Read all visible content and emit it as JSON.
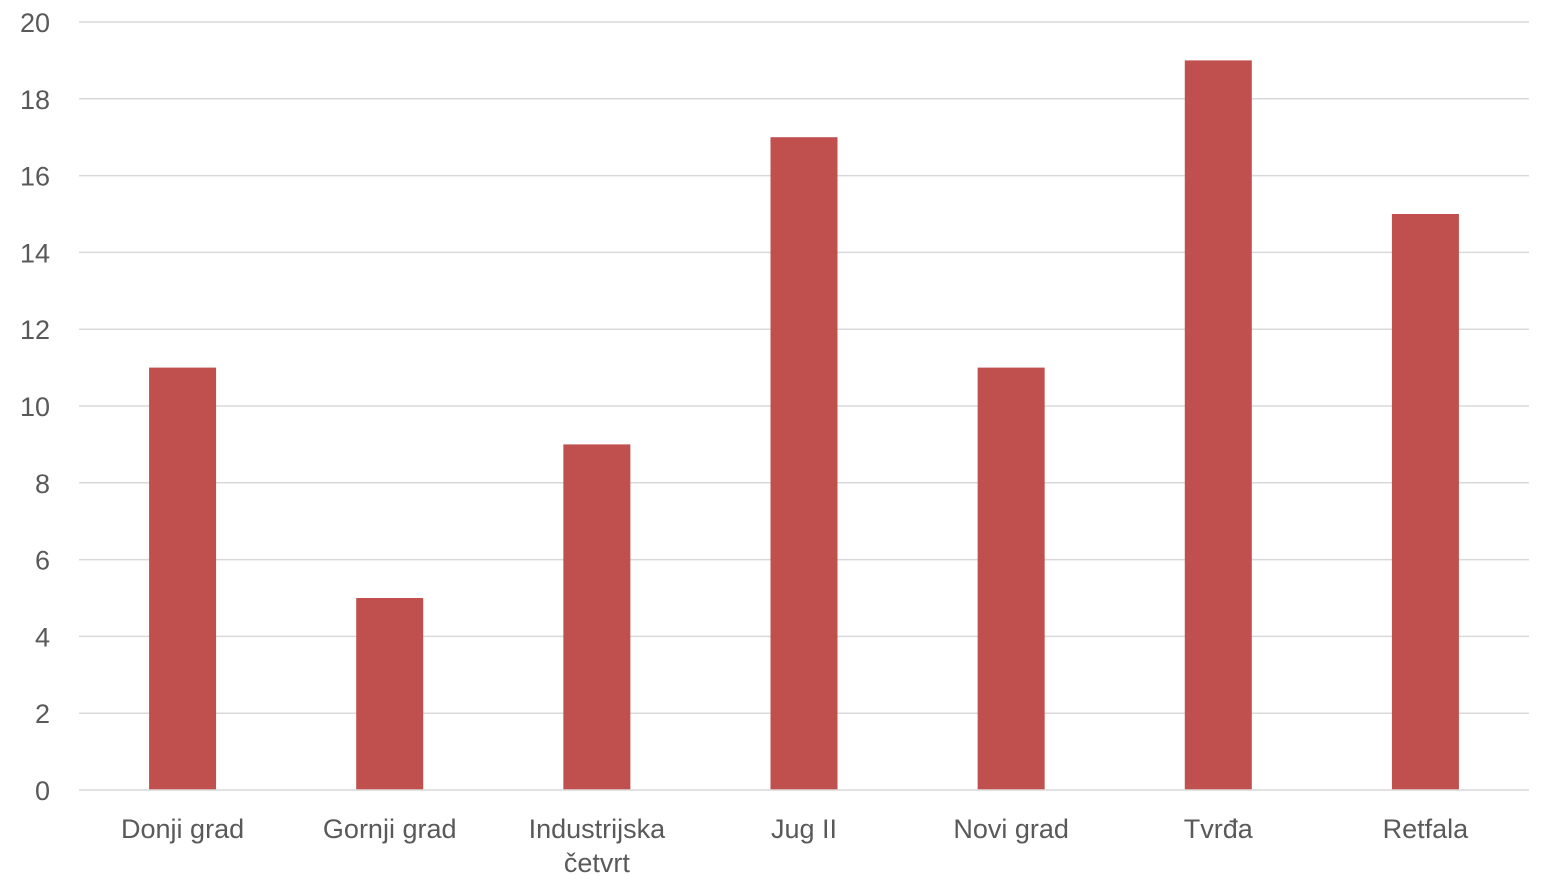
{
  "chart_data": {
    "type": "bar",
    "title": "",
    "xlabel": "",
    "ylabel": "",
    "categories": [
      "Donji grad",
      "Gornji grad",
      "Industrijska četvrt",
      "Jug II",
      "Novi grad",
      "Tvrđa",
      "Retfala"
    ],
    "category_lines": [
      [
        "Donji grad"
      ],
      [
        "Gornji grad"
      ],
      [
        "Industrijska",
        "četvrt"
      ],
      [
        "Jug II"
      ],
      [
        "Novi grad"
      ],
      [
        "Tvrđa"
      ],
      [
        "Retfala"
      ]
    ],
    "series": [
      {
        "values": [
          11,
          5,
          9,
          17,
          11,
          19,
          15
        ],
        "color": "#c0504d"
      }
    ],
    "ylim": [
      0,
      20
    ],
    "yticks": [
      0,
      2,
      4,
      6,
      8,
      10,
      12,
      14,
      16,
      18,
      20
    ],
    "grid": true,
    "legend": "none"
  }
}
